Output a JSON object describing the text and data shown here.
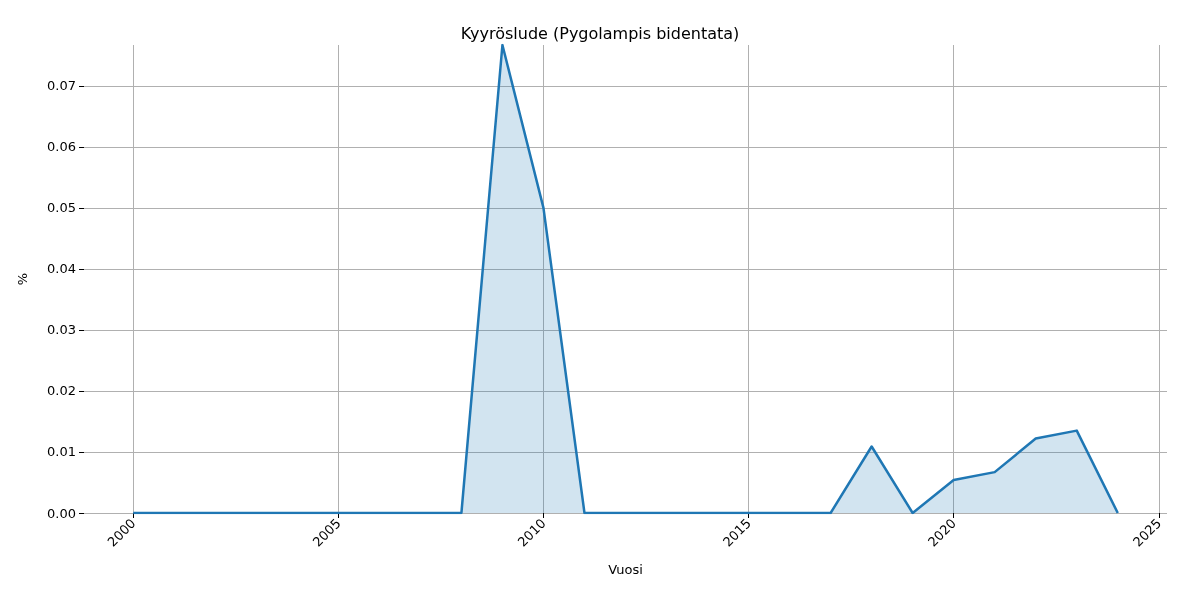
{
  "chart_data": {
    "type": "area",
    "title": "Kyyröslude (Pygolampis bidentata)",
    "xlabel": "Vuosi",
    "ylabel": "%",
    "x": [
      2000,
      2001,
      2002,
      2003,
      2004,
      2005,
      2006,
      2007,
      2008,
      2009,
      2010,
      2011,
      2012,
      2013,
      2014,
      2015,
      2016,
      2017,
      2018,
      2019,
      2020,
      2021,
      2022,
      2023,
      2024
    ],
    "series": [
      {
        "color": "#1f77b4",
        "values": [
          0,
          0,
          0,
          0,
          0,
          0,
          0,
          0,
          0,
          0.0767,
          0.05,
          0,
          0,
          0,
          0,
          0,
          0,
          0,
          0.0109,
          0,
          0.0054,
          0.0067,
          0.0122,
          0.0135,
          0
        ]
      }
    ],
    "xlim": [
      1998.8,
      2025.2
    ],
    "xticks": [
      2000,
      2005,
      2010,
      2015,
      2020,
      2025
    ],
    "ylim": [
      0,
      0.0767
    ],
    "yticks": [
      {
        "value": 0,
        "label": "0.00"
      },
      {
        "value": 0.01,
        "label": "0.01"
      },
      {
        "value": 0.02,
        "label": "0.02"
      },
      {
        "value": 0.03,
        "label": "0.03"
      },
      {
        "value": 0.04,
        "label": "0.04"
      },
      {
        "value": 0.05,
        "label": "0.05"
      },
      {
        "value": 0.06,
        "label": "0.06"
      },
      {
        "value": 0.07,
        "label": "0.07"
      }
    ],
    "grid": true
  }
}
